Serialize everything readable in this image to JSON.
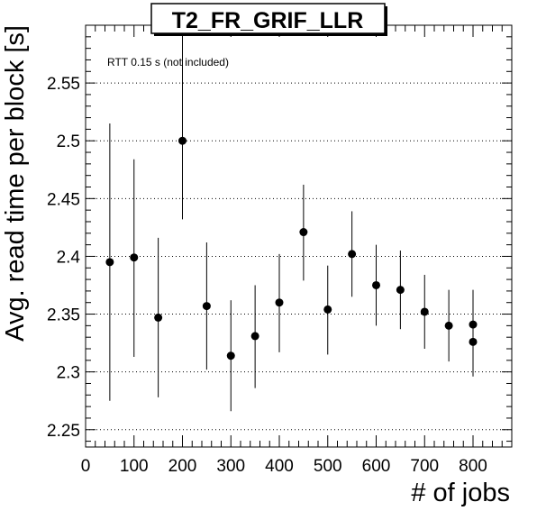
{
  "chart_data": {
    "type": "scatter",
    "title": "T2_FR_GRIF_LLR",
    "annotation": "RTT 0.15 s (not included)",
    "xlabel": "# of jobs",
    "ylabel": "Avg. read time per block [s]",
    "xlim": [
      0,
      880
    ],
    "ylim": [
      2.235,
      2.6
    ],
    "x_ticks": [
      0,
      100,
      200,
      300,
      400,
      500,
      600,
      700,
      800
    ],
    "y_ticks": [
      2.25,
      2.3,
      2.35,
      2.4,
      2.45,
      2.5,
      2.55
    ],
    "y_tick_labels": [
      "2.25",
      "2.3",
      "2.35",
      "2.4",
      "2.45",
      "2.5",
      "2.55"
    ],
    "grid": true,
    "grid_style": "dotted horizontal",
    "marker_color": "#000000",
    "points": [
      {
        "x": 50,
        "y": 2.395,
        "ylow": 2.275,
        "yhigh": 2.515
      },
      {
        "x": 100,
        "y": 2.399,
        "ylow": 2.313,
        "yhigh": 2.484
      },
      {
        "x": 150,
        "y": 2.347,
        "ylow": 2.278,
        "yhigh": 2.416
      },
      {
        "x": 200,
        "y": 2.5,
        "ylow": 2.432,
        "yhigh": 2.6
      },
      {
        "x": 250,
        "y": 2.357,
        "ylow": 2.302,
        "yhigh": 2.412
      },
      {
        "x": 300,
        "y": 2.314,
        "ylow": 2.266,
        "yhigh": 2.362
      },
      {
        "x": 350,
        "y": 2.331,
        "ylow": 2.286,
        "yhigh": 2.375
      },
      {
        "x": 400,
        "y": 2.36,
        "ylow": 2.317,
        "yhigh": 2.402
      },
      {
        "x": 450,
        "y": 2.421,
        "ylow": 2.379,
        "yhigh": 2.462
      },
      {
        "x": 500,
        "y": 2.354,
        "ylow": 2.315,
        "yhigh": 2.392
      },
      {
        "x": 550,
        "y": 2.402,
        "ylow": 2.365,
        "yhigh": 2.439
      },
      {
        "x": 600,
        "y": 2.375,
        "ylow": 2.34,
        "yhigh": 2.41
      },
      {
        "x": 650,
        "y": 2.371,
        "ylow": 2.337,
        "yhigh": 2.405
      },
      {
        "x": 700,
        "y": 2.352,
        "ylow": 2.32,
        "yhigh": 2.384
      },
      {
        "x": 750,
        "y": 2.34,
        "ylow": 2.309,
        "yhigh": 2.371
      },
      {
        "x": 800,
        "y": 2.341,
        "ylow": 2.311,
        "yhigh": 2.371
      },
      {
        "x": 800,
        "y": 2.326,
        "ylow": 2.296,
        "yhigh": 2.356
      }
    ]
  }
}
